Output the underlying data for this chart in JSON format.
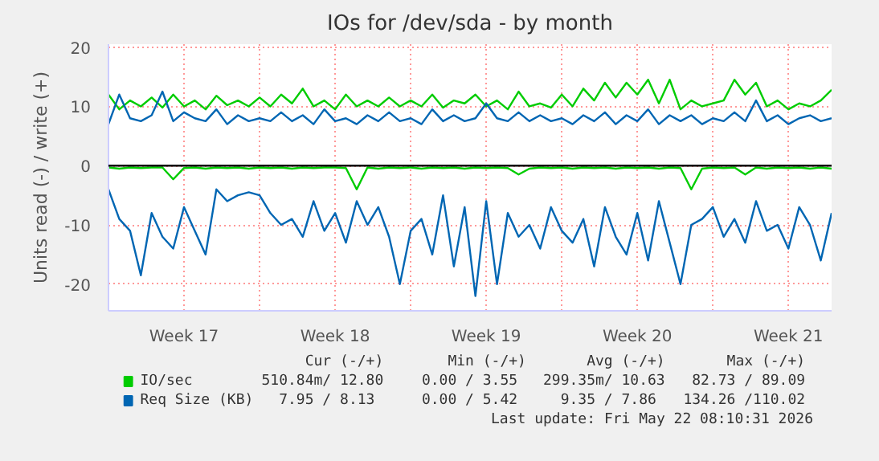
{
  "chart_data": {
    "type": "line",
    "title": "IOs for /dev/sda - by month",
    "ylabel": "Units read (-) / write (+)",
    "x": [
      "2026-04-20T00:00",
      "2026-04-20T12:00",
      "2026-04-21T00:00",
      "2026-04-21T12:00",
      "2026-04-22T00:00",
      "2026-04-22T12:00",
      "2026-04-23T00:00",
      "2026-04-23T12:00",
      "2026-04-24T00:00",
      "2026-04-24T12:00",
      "2026-04-25T00:00",
      "2026-04-25T12:00",
      "2026-04-26T00:00",
      "2026-04-26T12:00",
      "2026-04-27T00:00",
      "2026-04-27T12:00",
      "2026-04-28T00:00",
      "2026-04-28T12:00",
      "2026-04-29T00:00",
      "2026-04-29T12:00",
      "2026-04-30T00:00",
      "2026-04-30T12:00",
      "2026-05-01T00:00",
      "2026-05-01T12:00",
      "2026-05-02T00:00",
      "2026-05-02T12:00",
      "2026-05-03T00:00",
      "2026-05-03T12:00",
      "2026-05-04T00:00",
      "2026-05-04T12:00",
      "2026-05-05T00:00",
      "2026-05-05T12:00",
      "2026-05-06T00:00",
      "2026-05-06T12:00",
      "2026-05-07T00:00",
      "2026-05-07T12:00",
      "2026-05-08T00:00",
      "2026-05-08T12:00",
      "2026-05-09T00:00",
      "2026-05-09T12:00",
      "2026-05-10T00:00",
      "2026-05-10T12:00",
      "2026-05-11T00:00",
      "2026-05-11T12:00",
      "2026-05-12T00:00",
      "2026-05-12T12:00",
      "2026-05-13T00:00",
      "2026-05-13T12:00",
      "2026-05-14T00:00",
      "2026-05-14T12:00",
      "2026-05-15T00:00",
      "2026-05-15T12:00",
      "2026-05-16T00:00",
      "2026-05-16T12:00",
      "2026-05-17T00:00",
      "2026-05-17T12:00",
      "2026-05-18T00:00",
      "2026-05-18T12:00",
      "2026-05-19T00:00",
      "2026-05-19T12:00",
      "2026-05-20T00:00",
      "2026-05-20T12:00",
      "2026-05-21T00:00",
      "2026-05-21T12:00",
      "2026-05-22T00:00",
      "2026-05-22T12:00",
      "2026-05-23T00:00",
      "2026-05-23T12:00"
    ],
    "series": [
      {
        "name": "IO/sec",
        "color": "#00cc00",
        "values": [
          12,
          9.5,
          11,
          10,
          11.5,
          9.8,
          12,
          10,
          11,
          9.5,
          11.8,
          10.2,
          11,
          10,
          11.5,
          10,
          12,
          10.5,
          13,
          10,
          11,
          9.5,
          12,
          10,
          11,
          10,
          11.5,
          10,
          11,
          10,
          12,
          9.8,
          11,
          10.5,
          12,
          10,
          11,
          9.5,
          12.5,
          10,
          10.5,
          9.8,
          12,
          10,
          13,
          11,
          14,
          11.5,
          14,
          12,
          14.5,
          10.5,
          14.5,
          9.5,
          11,
          10,
          10.5,
          11,
          14.5,
          12,
          14,
          10,
          11,
          9.5,
          10.5,
          10,
          11,
          12.8
        ]
      },
      {
        "name": "Req Size (KB)",
        "color": "#0066b3",
        "values": [
          7,
          12,
          8,
          7.5,
          8.5,
          12.5,
          7.5,
          9,
          8,
          7.5,
          9.5,
          7,
          8.5,
          7.5,
          8,
          7.5,
          9,
          7.5,
          8.5,
          7,
          9.5,
          7.5,
          8,
          7,
          8.5,
          7.5,
          9,
          7.5,
          8,
          7,
          9.5,
          7.5,
          8.5,
          7.5,
          8,
          10.5,
          8,
          7.5,
          9,
          7.5,
          8.5,
          7.5,
          8,
          7,
          8.5,
          7.5,
          9,
          7,
          8.5,
          7.5,
          9.5,
          7,
          8.5,
          7.5,
          8.5,
          7,
          8,
          7.5,
          9,
          7.5,
          11,
          7.5,
          8.5,
          7,
          8,
          8.5,
          7.5,
          8
        ]
      },
      {
        "color": "#00cc00",
        "values": [
          -0.3,
          -0.5,
          -0.3,
          -0.4,
          -0.3,
          -0.3,
          -2.3,
          -0.4,
          -0.3,
          -0.5,
          -0.3,
          -0.4,
          -0.3,
          -0.5,
          -0.3,
          -0.4,
          -0.3,
          -0.5,
          -0.3,
          -0.4,
          -0.3,
          -0.3,
          -0.4,
          -4,
          -0.3,
          -0.5,
          -0.3,
          -0.4,
          -0.3,
          -0.5,
          -0.3,
          -0.4,
          -0.3,
          -0.5,
          -0.3,
          -0.4,
          -0.3,
          -0.4,
          -1.5,
          -0.5,
          -0.3,
          -0.4,
          -0.3,
          -0.5,
          -0.3,
          -0.4,
          -0.3,
          -0.5,
          -0.3,
          -0.4,
          -0.3,
          -0.5,
          -0.3,
          -0.4,
          -4,
          -0.5,
          -0.3,
          -0.4,
          -0.3,
          -1.5,
          -0.3,
          -0.5,
          -0.3,
          -0.4,
          -0.3,
          -0.5,
          -0.3,
          -0.5
        ]
      },
      {
        "color": "#0066b3",
        "values": [
          -4,
          -9,
          -11,
          -18.5,
          -8,
          -12,
          -14,
          -7,
          -11,
          -15,
          -4,
          -6,
          -5,
          -4.5,
          -5,
          -8,
          -10,
          -9,
          -12,
          -6,
          -11,
          -8,
          -13,
          -6,
          -10,
          -7,
          -12,
          -20,
          -11,
          -9,
          -15,
          -5,
          -17,
          -7,
          -22,
          -6,
          -20,
          -8,
          -12,
          -10,
          -14,
          -7,
          -11,
          -13,
          -9,
          -17,
          -7,
          -12,
          -15,
          -8,
          -16,
          -6,
          -13,
          -20,
          -10,
          -9,
          -7,
          -12,
          -9,
          -13,
          -6,
          -11,
          -10,
          -14,
          -7,
          -10,
          -16,
          -8
        ]
      }
    ],
    "xlim": [
      "2026-04-20T00:00",
      "2026-05-23T12:00"
    ],
    "xticks": [
      {
        "value": "2026-04-23T12:00",
        "label": "Week 17"
      },
      {
        "value": "2026-04-27T00:00",
        "label": null
      },
      {
        "value": "2026-04-30T12:00",
        "label": "Week 18"
      },
      {
        "value": "2026-05-04T00:00",
        "label": null
      },
      {
        "value": "2026-05-07T12:00",
        "label": "Week 19"
      },
      {
        "value": "2026-05-11T00:00",
        "label": null
      },
      {
        "value": "2026-05-14T12:00",
        "label": "Week 20"
      },
      {
        "value": "2026-05-18T00:00",
        "label": null
      },
      {
        "value": "2026-05-21T12:00",
        "label": "Week 21"
      }
    ],
    "ylim": [
      -24.5,
      20.5
    ],
    "yticks": [
      -20,
      -10,
      0,
      10,
      20
    ],
    "grid": true,
    "legend": "bottom",
    "ref_lines": [
      {
        "axis": "y",
        "value": 0,
        "color": "#000000"
      }
    ],
    "annotations": [
      "Cur (-/+)",
      "Min (-/+)",
      "Avg (-/+)",
      "Max (-/+)",
      "510.84m/ 12.80",
      "0.00 /  3.55",
      "299.35m/ 10.63",
      "82.73 / 89.09",
      "7.95 /  8.13",
      "0.00 /  5.42",
      "9.35 /  7.86",
      "134.26 /110.02",
      "Last update: Fri May 22 08:10:31 2026"
    ]
  }
}
